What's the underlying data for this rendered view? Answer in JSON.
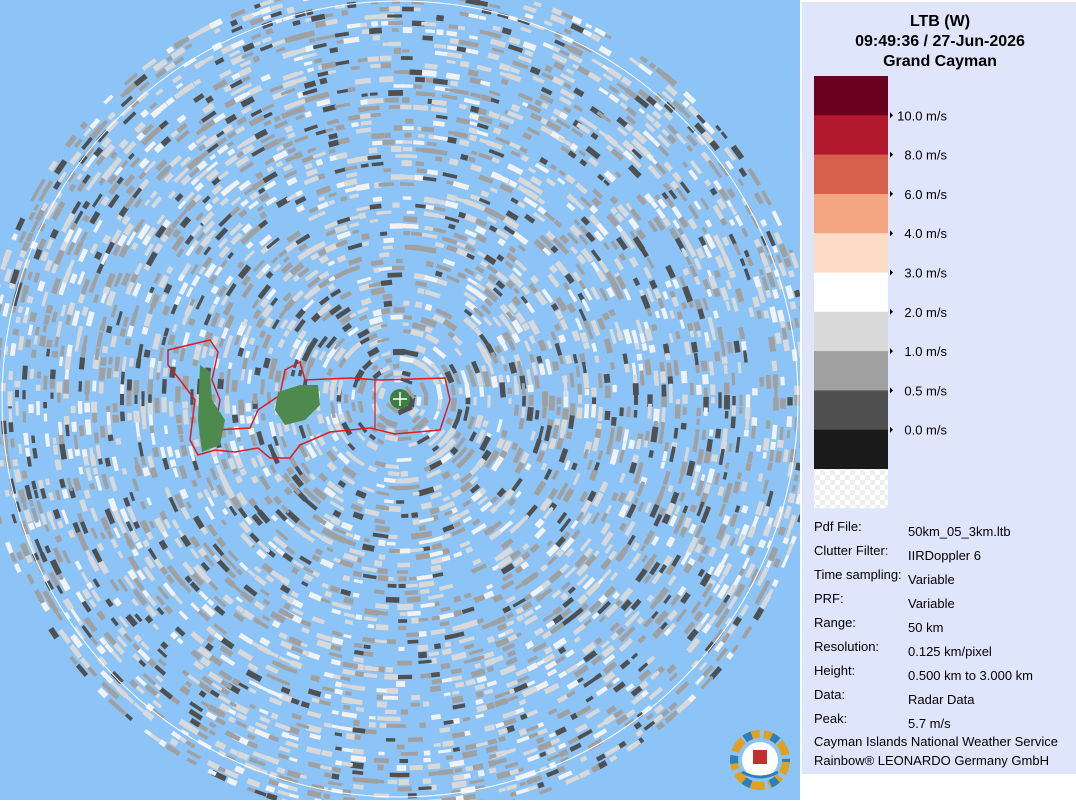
{
  "header": {
    "station": "LTB (W)",
    "datetime": "09:49:36 / 27-Jun-2026",
    "location": "Grand Cayman"
  },
  "legend": {
    "swatches": [
      "#6a0020",
      "#b3192e",
      "#d6604d",
      "#f4a582",
      "#fddbc7",
      "#ffffff",
      "#d9d9d9",
      "#a0a0a0",
      "#505050",
      "#1a1a1a"
    ],
    "labels": [
      "10.0 m/s",
      "8.0 m/s",
      "6.0 m/s",
      "4.0 m/s",
      "3.0 m/s",
      "2.0 m/s",
      "1.0 m/s",
      "0.5 m/s",
      "0.0 m/s"
    ]
  },
  "info": {
    "rows": [
      {
        "label": "Pdf File:",
        "value": "50km_05_3km.ltb"
      },
      {
        "label": "Clutter Filter:",
        "value": "IIRDoppler 6"
      },
      {
        "label": "Time sampling:",
        "value": "Variable"
      },
      {
        "label": "PRF:",
        "value": "Variable"
      },
      {
        "label": "Range:",
        "value": "50 km"
      },
      {
        "label": "Resolution:",
        "value": "0.125 km/pixel"
      },
      {
        "label": "Height:",
        "value": "0.500 km to 3.000 km"
      },
      {
        "label": "Data:",
        "value": "Radar Data"
      },
      {
        "label": "Peak:",
        "value": "5.7 m/s"
      }
    ]
  },
  "footer": [
    "Cayman Islands National Weather Service",
    "Rainbow® LEONARDO Germany GmbH"
  ]
}
